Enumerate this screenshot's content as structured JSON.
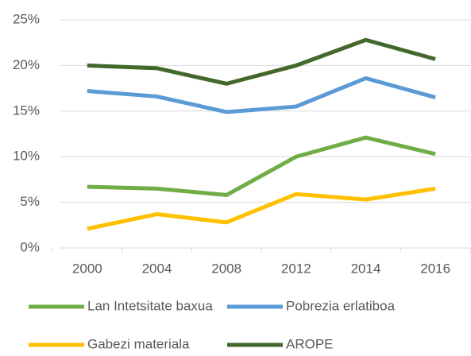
{
  "chart_data": {
    "type": "line",
    "categories": [
      "2000",
      "2004",
      "2008",
      "2012",
      "2014",
      "2016"
    ],
    "series": [
      {
        "name": "Lan Intetsitate baxua",
        "color": "#70ad47",
        "values": [
          6.7,
          6.5,
          5.8,
          10.0,
          12.1,
          10.3
        ]
      },
      {
        "name": "Pobrezia erlatiboa",
        "color": "#5b9bd5",
        "values": [
          17.2,
          16.6,
          14.9,
          15.5,
          18.6,
          16.5
        ]
      },
      {
        "name": "Gabezi materiala",
        "color": "#ffc000",
        "values": [
          2.1,
          3.7,
          2.8,
          5.9,
          5.3,
          6.5
        ]
      },
      {
        "name": "AROPE",
        "color": "#43682b",
        "values": [
          20.0,
          19.7,
          18.0,
          20.0,
          22.8,
          20.7
        ]
      }
    ],
    "ylim": [
      0,
      25
    ],
    "yticks": [
      {
        "value": 0,
        "label": "0%"
      },
      {
        "value": 5,
        "label": "5%"
      },
      {
        "value": 10,
        "label": "10%"
      },
      {
        "value": 15,
        "label": "15%"
      },
      {
        "value": 20,
        "label": "20%"
      },
      {
        "value": 25,
        "label": "25%"
      }
    ],
    "grid": true,
    "legend": "bottom"
  }
}
